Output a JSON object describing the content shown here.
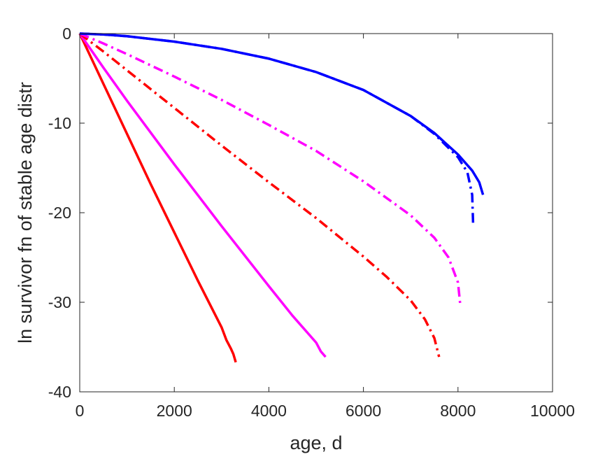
{
  "chart_data": {
    "type": "line",
    "title": "",
    "xlabel": "age, d",
    "ylabel": "ln survivor fn of stable age distr",
    "xlim": [
      0,
      10000
    ],
    "ylim": [
      -40,
      0
    ],
    "xticks": [
      0,
      2000,
      4000,
      6000,
      8000,
      10000
    ],
    "yticks": [
      0,
      -10,
      -20,
      -30,
      -40
    ],
    "xtick_labels": [
      "0",
      "2000",
      "4000",
      "6000",
      "8000",
      "10000"
    ],
    "ytick_labels": [
      "0",
      "-10",
      "-20",
      "-30",
      "-40"
    ],
    "grid": false,
    "legend": "none",
    "series": [
      {
        "color": "#ff0000",
        "style": "solid",
        "x": [
          0,
          500,
          1000,
          1500,
          2000,
          2500,
          3000,
          3100,
          3200,
          3250,
          3300
        ],
        "y": [
          0,
          -5.6,
          -11.2,
          -16.8,
          -22.2,
          -27.6,
          -32.8,
          -34.2,
          -35.2,
          -35.8,
          -36.7
        ]
      },
      {
        "color": "#ff00ff",
        "style": "solid",
        "x": [
          0,
          500,
          1000,
          2000,
          3000,
          4000,
          4500,
          5000,
          5100,
          5200
        ],
        "y": [
          0,
          -3.8,
          -7.5,
          -14.6,
          -21.5,
          -28.2,
          -31.5,
          -34.5,
          -35.5,
          -36.1
        ]
      },
      {
        "color": "#ff0000",
        "style": "dashdot",
        "x": [
          0,
          500,
          1000,
          2000,
          3000,
          4000,
          5000,
          6000,
          6500,
          7000,
          7300,
          7500,
          7600
        ],
        "y": [
          0,
          -2.0,
          -4.1,
          -8.3,
          -12.5,
          -16.6,
          -20.6,
          -24.9,
          -27.2,
          -29.8,
          -31.9,
          -34.0,
          -36.1
        ]
      },
      {
        "color": "#ff00ff",
        "style": "dashdot",
        "x": [
          0,
          500,
          1000,
          2000,
          3000,
          4000,
          5000,
          6000,
          7000,
          7500,
          7800,
          8000,
          8050
        ],
        "y": [
          0,
          -1.1,
          -2.3,
          -4.8,
          -7.4,
          -10.2,
          -13.1,
          -16.5,
          -20.3,
          -22.8,
          -25.0,
          -27.8,
          -30.4
        ]
      },
      {
        "color": "#0000ff",
        "style": "dashdot",
        "x": [
          0,
          500,
          1000,
          2000,
          3000,
          4000,
          5000,
          6000,
          7000,
          7500,
          8000,
          8200,
          8300,
          8320
        ],
        "y": [
          0,
          -0.1,
          -0.3,
          -0.9,
          -1.7,
          -2.8,
          -4.3,
          -6.3,
          -9.2,
          -11.2,
          -13.8,
          -15.5,
          -18.0,
          -21.2
        ]
      },
      {
        "color": "#0000ff",
        "style": "solid",
        "x": [
          0,
          500,
          1000,
          2000,
          3000,
          4000,
          5000,
          6000,
          7000,
          7500,
          8000,
          8300,
          8450,
          8530
        ],
        "y": [
          0,
          -0.1,
          -0.3,
          -0.9,
          -1.7,
          -2.8,
          -4.3,
          -6.3,
          -9.2,
          -11.1,
          -13.5,
          -15.3,
          -16.6,
          -18.0
        ]
      }
    ]
  }
}
